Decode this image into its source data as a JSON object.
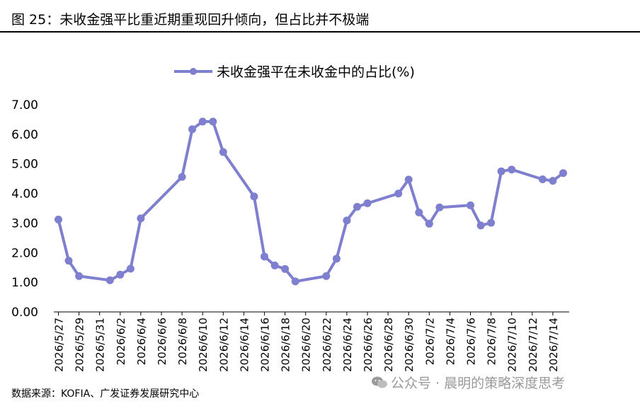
{
  "figure_title": "图 25：未收金强平比重近期重现回升倾向，但占比并不极端",
  "source": "数据来源：KOFIA、广发证券发展研究中心",
  "watermark": "公众号 · 晨明的策略深度思考",
  "colors": {
    "series": "#7F7FCF",
    "axis": "#000000",
    "text": "#000000",
    "watermark": "#9A9A9A"
  },
  "chart_data": {
    "type": "line",
    "title": "",
    "xlabel": "",
    "ylabel": "",
    "ylim": [
      0,
      7
    ],
    "y_ticks": [
      "0.00",
      "1.00",
      "2.00",
      "3.00",
      "4.00",
      "5.00",
      "6.00",
      "7.00"
    ],
    "grid": false,
    "legend_position": "top",
    "x_tick_labels": [
      "2026/5/27",
      "2026/5/29",
      "2026/5/31",
      "2026/6/2",
      "2026/6/4",
      "2026/6/6",
      "2026/6/8",
      "2026/6/10",
      "2026/6/12",
      "2026/6/14",
      "2026/6/16",
      "2026/6/18",
      "2026/6/20",
      "2026/6/22",
      "2026/6/24",
      "2026/6/26",
      "2026/6/28",
      "2026/6/30",
      "2026/7/2",
      "2026/7/4",
      "2026/7/6",
      "2026/7/8",
      "2026/7/10",
      "2026/7/12",
      "2026/7/14"
    ],
    "series": [
      {
        "name": "未收金强平在未收金中的占比(%)",
        "points": [
          {
            "x": "2026/5/27",
            "y": 3.12
          },
          {
            "x": "2026/5/28",
            "y": 1.73
          },
          {
            "x": "2026/5/29",
            "y": 1.21
          },
          {
            "x": "2026/6/1",
            "y": 1.07
          },
          {
            "x": "2026/6/2",
            "y": 1.26
          },
          {
            "x": "2026/6/3",
            "y": 1.46
          },
          {
            "x": "2026/6/4",
            "y": 3.16
          },
          {
            "x": "2026/6/8",
            "y": 4.56
          },
          {
            "x": "2026/6/9",
            "y": 6.17
          },
          {
            "x": "2026/6/10",
            "y": 6.43
          },
          {
            "x": "2026/6/11",
            "y": 6.43
          },
          {
            "x": "2026/6/12",
            "y": 5.4
          },
          {
            "x": "2026/6/15",
            "y": 3.9
          },
          {
            "x": "2026/6/16",
            "y": 1.87
          },
          {
            "x": "2026/6/17",
            "y": 1.57
          },
          {
            "x": "2026/6/18",
            "y": 1.45
          },
          {
            "x": "2026/6/19",
            "y": 1.03
          },
          {
            "x": "2026/6/22",
            "y": 1.21
          },
          {
            "x": "2026/6/23",
            "y": 1.8
          },
          {
            "x": "2026/6/24",
            "y": 3.09
          },
          {
            "x": "2026/6/25",
            "y": 3.55
          },
          {
            "x": "2026/6/26",
            "y": 3.67
          },
          {
            "x": "2026/6/29",
            "y": 4.0
          },
          {
            "x": "2026/6/30",
            "y": 4.47
          },
          {
            "x": "2026/7/1",
            "y": 3.36
          },
          {
            "x": "2026/7/2",
            "y": 2.98
          },
          {
            "x": "2026/7/3",
            "y": 3.53
          },
          {
            "x": "2026/7/6",
            "y": 3.6
          },
          {
            "x": "2026/7/7",
            "y": 2.92
          },
          {
            "x": "2026/7/8",
            "y": 3.01
          },
          {
            "x": "2026/7/9",
            "y": 4.75
          },
          {
            "x": "2026/7/10",
            "y": 4.81
          },
          {
            "x": "2026/7/13",
            "y": 4.48
          },
          {
            "x": "2026/7/14",
            "y": 4.43
          },
          {
            "x": "2026/7/15",
            "y": 4.69
          }
        ]
      }
    ]
  }
}
